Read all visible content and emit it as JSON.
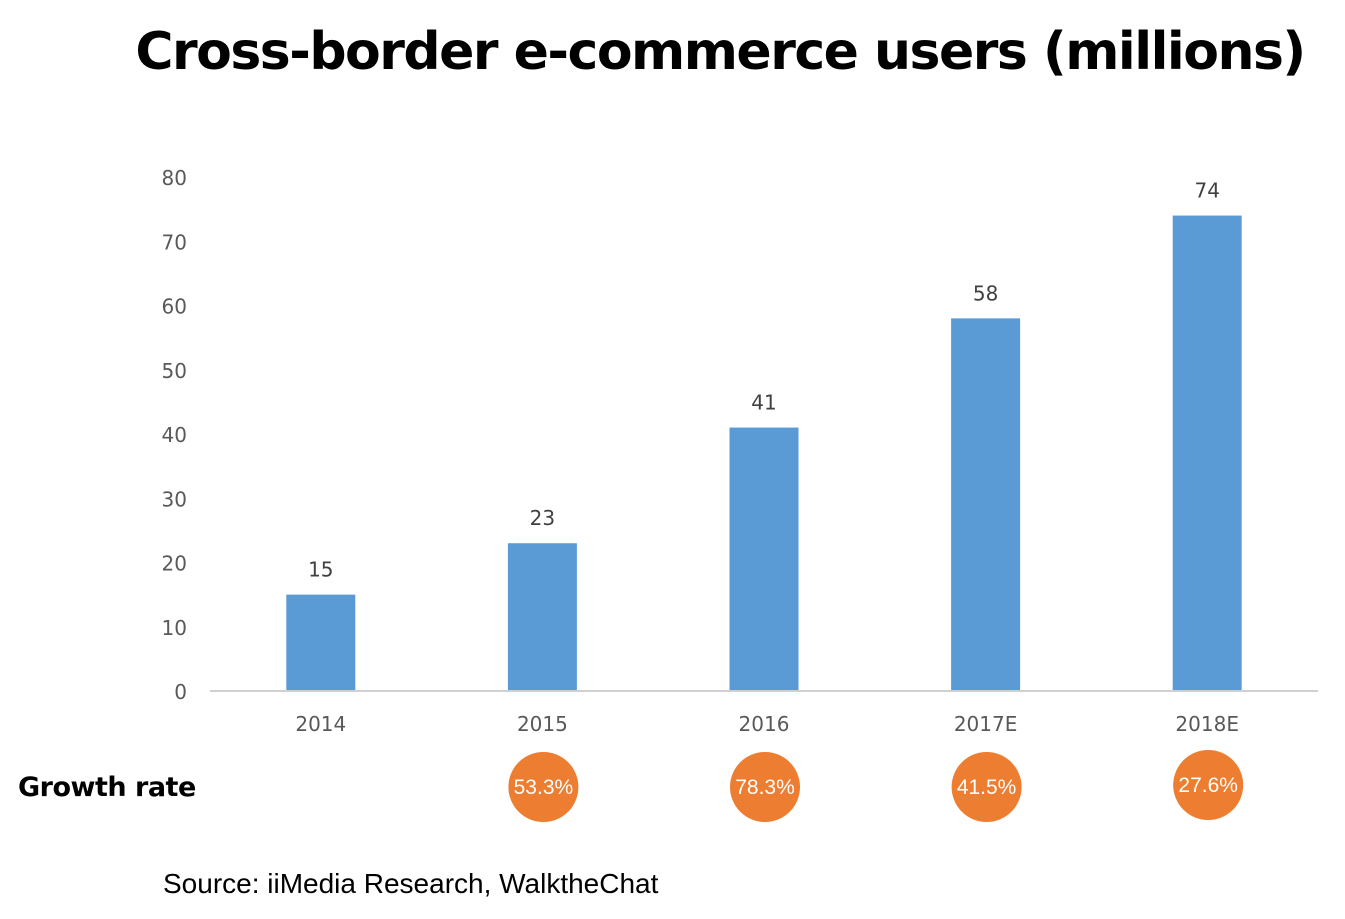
{
  "chart_data": {
    "type": "bar",
    "title": "Cross-border e-commerce users (millions)",
    "categories": [
      "2014",
      "2015",
      "2016",
      "2017E",
      "2018E"
    ],
    "values": [
      15,
      23,
      41,
      58,
      74
    ],
    "data_labels": [
      "15",
      "23",
      "41",
      "58",
      "74"
    ],
    "ylim": [
      0,
      80
    ],
    "yticks": [
      "0",
      "10",
      "20",
      "30",
      "40",
      "50",
      "60",
      "70",
      "80"
    ],
    "grid": false,
    "legend": "none",
    "bar_color": "#5b9bd5",
    "growth": {
      "label": "Growth rate",
      "values": [
        "",
        "53.3%",
        "78.3%",
        "41.5%",
        "27.6%"
      ],
      "color": "#ed7d31"
    }
  },
  "source": "Source: iiMedia  Research, WalktheChat"
}
